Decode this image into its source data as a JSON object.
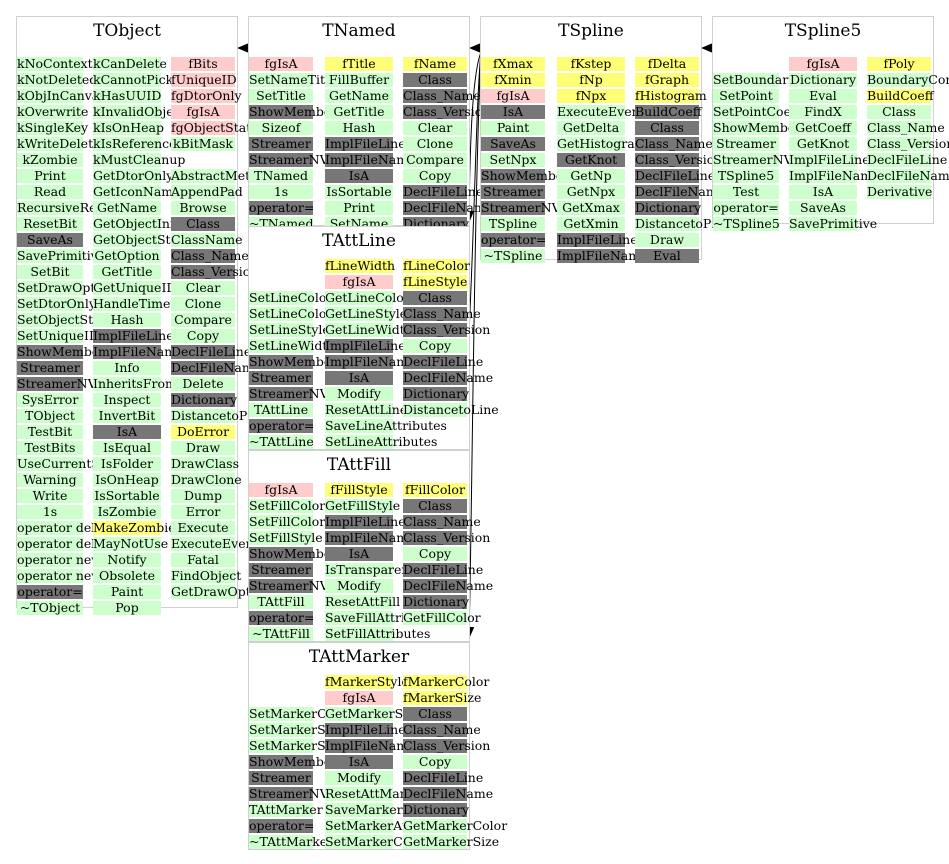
{
  "colors": {
    "public_method": "#ccffcc",
    "protected_method": "#777777",
    "data_member": "#ffff77",
    "static_member": "#ffcccc",
    "edge": "#000000",
    "box_border": "#d0d0d0"
  },
  "classes": {
    "TObject": {
      "title": "TObject",
      "col0": [
        [
          "kNoContextMenu",
          "g"
        ],
        [
          "kNotDeleted",
          "g"
        ],
        [
          "kObjInCanvas",
          "g"
        ],
        [
          "kOverwrite",
          "g"
        ],
        [
          "kSingleKey",
          "g"
        ],
        [
          "kWriteDelete",
          "g"
        ],
        [
          "kZombie",
          "g"
        ],
        [
          "Print",
          "g"
        ],
        [
          "Read",
          "g"
        ],
        [
          "RecursiveRemove",
          "g"
        ],
        [
          "ResetBit",
          "g"
        ],
        [
          "SaveAs",
          "d"
        ],
        [
          "SavePrimitive",
          "g"
        ],
        [
          "SetBit",
          "g"
        ],
        [
          "SetDrawOption",
          "g"
        ],
        [
          "SetDtorOnly",
          "g"
        ],
        [
          "SetObjectStat",
          "g"
        ],
        [
          "SetUniqueID",
          "g"
        ],
        [
          "ShowMembers",
          "d"
        ],
        [
          "Streamer",
          "d"
        ],
        [
          "StreamerNVirtual",
          "d"
        ],
        [
          "SysError",
          "g"
        ],
        [
          "TObject",
          "g"
        ],
        [
          "TestBit",
          "g"
        ],
        [
          "TestBits",
          "g"
        ],
        [
          "UseCurrentStyle",
          "g"
        ],
        [
          "Warning",
          "g"
        ],
        [
          "Write",
          "g"
        ],
        [
          "1s",
          "g"
        ],
        [
          "operator delete",
          "g"
        ],
        [
          "operator delete[]",
          "g"
        ],
        [
          "operator new",
          "g"
        ],
        [
          "operator new[]",
          "g"
        ],
        [
          "operator=",
          "d"
        ],
        [
          "~TObject",
          "g"
        ]
      ],
      "col1": [
        [
          "kCanDelete",
          "g"
        ],
        [
          "kCannotPick",
          "g"
        ],
        [
          "kHasUUID",
          "g"
        ],
        [
          "kInvalidObject",
          "g"
        ],
        [
          "kIsOnHeap",
          "g"
        ],
        [
          "kIsReferenced",
          "g"
        ],
        [
          "kMustCleanup",
          "g"
        ],
        [
          "GetDtorOnly",
          "g"
        ],
        [
          "GetIconName",
          "g"
        ],
        [
          "GetName",
          "g"
        ],
        [
          "GetObjectInfo",
          "g"
        ],
        [
          "GetObjectStat",
          "g"
        ],
        [
          "GetOption",
          "g"
        ],
        [
          "GetTitle",
          "g"
        ],
        [
          "GetUniqueID",
          "g"
        ],
        [
          "HandleTimer",
          "g"
        ],
        [
          "Hash",
          "g"
        ],
        [
          "ImplFileLine",
          "d"
        ],
        [
          "ImplFileName",
          "d"
        ],
        [
          "Info",
          "g"
        ],
        [
          "InheritsFrom",
          "g"
        ],
        [
          "Inspect",
          "g"
        ],
        [
          "InvertBit",
          "g"
        ],
        [
          "IsA",
          "d"
        ],
        [
          "IsEqual",
          "g"
        ],
        [
          "IsFolder",
          "g"
        ],
        [
          "IsOnHeap",
          "g"
        ],
        [
          "IsSortable",
          "g"
        ],
        [
          "IsZombie",
          "g"
        ],
        [
          "MakeZombie",
          "y"
        ],
        [
          "MayNotUse",
          "g"
        ],
        [
          "Notify",
          "g"
        ],
        [
          "Obsolete",
          "g"
        ],
        [
          "Paint",
          "g"
        ],
        [
          "Pop",
          "g"
        ]
      ],
      "col2": [
        [
          "fBits",
          "p"
        ],
        [
          "fUniqueID",
          "p"
        ],
        [
          "fgDtorOnly",
          "p"
        ],
        [
          "fgIsA",
          "p"
        ],
        [
          "fgObjectStat",
          "p"
        ],
        [
          "kBitMask",
          "g"
        ],
        [
          "",
          "w"
        ],
        [
          "AbstractMethod",
          "g"
        ],
        [
          "AppendPad",
          "g"
        ],
        [
          "Browse",
          "g"
        ],
        [
          "Class",
          "d"
        ],
        [
          "ClassName",
          "g"
        ],
        [
          "Class_Name",
          "d"
        ],
        [
          "Class_Version",
          "d"
        ],
        [
          "Clear",
          "g"
        ],
        [
          "Clone",
          "g"
        ],
        [
          "Compare",
          "g"
        ],
        [
          "Copy",
          "g"
        ],
        [
          "DeclFileLine",
          "d"
        ],
        [
          "DeclFileName",
          "d"
        ],
        [
          "Delete",
          "g"
        ],
        [
          "Dictionary",
          "d"
        ],
        [
          "DistancetoPrimitive",
          "g"
        ],
        [
          "DoError",
          "y"
        ],
        [
          "Draw",
          "g"
        ],
        [
          "DrawClass",
          "g"
        ],
        [
          "DrawClone",
          "g"
        ],
        [
          "Dump",
          "g"
        ],
        [
          "Error",
          "g"
        ],
        [
          "Execute",
          "g"
        ],
        [
          "ExecuteEvent",
          "g"
        ],
        [
          "Fatal",
          "g"
        ],
        [
          "FindObject",
          "g"
        ],
        [
          "GetDrawOption",
          "g"
        ]
      ]
    },
    "TNamed": {
      "title": "TNamed",
      "col0": [
        [
          "fgIsA",
          "p"
        ],
        [
          "SetNameTitle",
          "g"
        ],
        [
          "SetTitle",
          "g"
        ],
        [
          "ShowMembers",
          "d"
        ],
        [
          "Sizeof",
          "g"
        ],
        [
          "Streamer",
          "d"
        ],
        [
          "StreamerNVirtual",
          "d"
        ],
        [
          "TNamed",
          "g"
        ],
        [
          "1s",
          "g"
        ],
        [
          "operator=",
          "d"
        ],
        [
          "~TNamed",
          "g"
        ]
      ],
      "col1": [
        [
          "fTitle",
          "y"
        ],
        [
          "FillBuffer",
          "g"
        ],
        [
          "GetName",
          "g"
        ],
        [
          "GetTitle",
          "g"
        ],
        [
          "Hash",
          "g"
        ],
        [
          "ImplFileLine",
          "d"
        ],
        [
          "ImplFileName",
          "d"
        ],
        [
          "IsA",
          "d"
        ],
        [
          "IsSortable",
          "g"
        ],
        [
          "Print",
          "g"
        ],
        [
          "SetName",
          "g"
        ]
      ],
      "col2": [
        [
          "fName",
          "y"
        ],
        [
          "Class",
          "d"
        ],
        [
          "Class_Name",
          "d"
        ],
        [
          "Class_Version",
          "d"
        ],
        [
          "Clear",
          "g"
        ],
        [
          "Clone",
          "g"
        ],
        [
          "Compare",
          "g"
        ],
        [
          "Copy",
          "g"
        ],
        [
          "DeclFileLine",
          "d"
        ],
        [
          "DeclFileName",
          "d"
        ],
        [
          "Dictionary",
          "d"
        ]
      ]
    },
    "TSpline": {
      "title": "TSpline",
      "col0": [
        [
          "fXmax",
          "y"
        ],
        [
          "fXmin",
          "y"
        ],
        [
          "fgIsA",
          "p"
        ],
        [
          "IsA",
          "d"
        ],
        [
          "Paint",
          "g"
        ],
        [
          "SaveAs",
          "d"
        ],
        [
          "SetNpx",
          "g"
        ],
        [
          "ShowMembers",
          "d"
        ],
        [
          "Streamer",
          "d"
        ],
        [
          "StreamerNVirtual",
          "d"
        ],
        [
          "TSpline",
          "g"
        ],
        [
          "operator=",
          "d"
        ],
        [
          "~TSpline",
          "g"
        ]
      ],
      "col1": [
        [
          "fKstep",
          "y"
        ],
        [
          "fNp",
          "y"
        ],
        [
          "fNpx",
          "y"
        ],
        [
          "ExecuteEvent",
          "g"
        ],
        [
          "GetDelta",
          "g"
        ],
        [
          "GetHistogram",
          "g"
        ],
        [
          "GetKnot",
          "d"
        ],
        [
          "GetNp",
          "g"
        ],
        [
          "GetNpx",
          "g"
        ],
        [
          "GetXmax",
          "g"
        ],
        [
          "GetXmin",
          "g"
        ],
        [
          "ImplFileLine",
          "d"
        ],
        [
          "ImplFileName",
          "d"
        ]
      ],
      "col2": [
        [
          "fDelta",
          "y"
        ],
        [
          "fGraph",
          "y"
        ],
        [
          "fHistogram",
          "y"
        ],
        [
          "BuildCoeff",
          "d"
        ],
        [
          "Class",
          "d"
        ],
        [
          "Class_Name",
          "d"
        ],
        [
          "Class_Version",
          "d"
        ],
        [
          "DeclFileLine",
          "d"
        ],
        [
          "DeclFileName",
          "d"
        ],
        [
          "Dictionary",
          "d"
        ],
        [
          "DistancetoPrimitive",
          "g"
        ],
        [
          "Draw",
          "g"
        ],
        [
          "Eval",
          "d"
        ]
      ]
    },
    "TSpline5": {
      "title": "TSpline5",
      "col0": [
        [
          "",
          "w"
        ],
        [
          "SetBoundaries",
          "g"
        ],
        [
          "SetPoint",
          "g"
        ],
        [
          "SetPointCoeff",
          "g"
        ],
        [
          "ShowMembers",
          "g"
        ],
        [
          "Streamer",
          "g"
        ],
        [
          "StreamerNVirtual",
          "g"
        ],
        [
          "TSpline5",
          "g"
        ],
        [
          "Test",
          "g"
        ],
        [
          "operator=",
          "g"
        ],
        [
          "~TSpline5",
          "g"
        ]
      ],
      "col1": [
        [
          "fgIsA",
          "p"
        ],
        [
          "Dictionary",
          "g"
        ],
        [
          "Eval",
          "g"
        ],
        [
          "FindX",
          "g"
        ],
        [
          "GetCoeff",
          "g"
        ],
        [
          "GetKnot",
          "g"
        ],
        [
          "ImplFileLine",
          "g"
        ],
        [
          "ImplFileName",
          "g"
        ],
        [
          "IsA",
          "g"
        ],
        [
          "SaveAs",
          "g"
        ],
        [
          "SavePrimitive",
          "g"
        ]
      ],
      "col2": [
        [
          "fPoly",
          "y"
        ],
        [
          "BoundaryConditions",
          "g"
        ],
        [
          "BuildCoeff",
          "y"
        ],
        [
          "Class",
          "g"
        ],
        [
          "Class_Name",
          "g"
        ],
        [
          "Class_Version",
          "g"
        ],
        [
          "DeclFileLine",
          "g"
        ],
        [
          "DeclFileName",
          "g"
        ],
        [
          "Derivative",
          "g"
        ]
      ]
    },
    "TAttLine": {
      "title": "TAttLine",
      "col0": [
        [
          "",
          "w"
        ],
        [
          "",
          "w"
        ],
        [
          "SetLineColor",
          "g"
        ],
        [
          "SetLineColorAlpha",
          "g"
        ],
        [
          "SetLineStyle",
          "g"
        ],
        [
          "SetLineWidth",
          "g"
        ],
        [
          "ShowMembers",
          "d"
        ],
        [
          "Streamer",
          "d"
        ],
        [
          "StreamerNVirtual",
          "d"
        ],
        [
          "TAttLine",
          "g"
        ],
        [
          "operator=",
          "d"
        ],
        [
          "~TAttLine",
          "g"
        ]
      ],
      "col1": [
        [
          "fLineWidth",
          "y"
        ],
        [
          "fgIsA",
          "p"
        ],
        [
          "GetLineColor",
          "g"
        ],
        [
          "GetLineStyle",
          "g"
        ],
        [
          "GetLineWidth",
          "g"
        ],
        [
          "ImplFileLine",
          "d"
        ],
        [
          "ImplFileName",
          "d"
        ],
        [
          "IsA",
          "d"
        ],
        [
          "Modify",
          "g"
        ],
        [
          "ResetAttLine",
          "g"
        ],
        [
          "SaveLineAttributes",
          "g"
        ],
        [
          "SetLineAttributes",
          "g"
        ]
      ],
      "col2": [
        [
          "fLineColor",
          "y"
        ],
        [
          "fLineStyle",
          "y"
        ],
        [
          "Class",
          "d"
        ],
        [
          "Class_Name",
          "d"
        ],
        [
          "Class_Version",
          "d"
        ],
        [
          "Copy",
          "g"
        ],
        [
          "DeclFileLine",
          "d"
        ],
        [
          "DeclFileName",
          "d"
        ],
        [
          "Dictionary",
          "d"
        ],
        [
          "DistancetoLine",
          "g"
        ]
      ]
    },
    "TAttFill": {
      "title": "TAttFill",
      "col0": [
        [
          "fgIsA",
          "p"
        ],
        [
          "SetFillColor",
          "g"
        ],
        [
          "SetFillColorAlpha",
          "g"
        ],
        [
          "SetFillStyle",
          "g"
        ],
        [
          "ShowMembers",
          "d"
        ],
        [
          "Streamer",
          "d"
        ],
        [
          "StreamerNVirtual",
          "d"
        ],
        [
          "TAttFill",
          "g"
        ],
        [
          "operator=",
          "d"
        ],
        [
          "~TAttFill",
          "g"
        ]
      ],
      "col1": [
        [
          "fFillStyle",
          "y"
        ],
        [
          "GetFillStyle",
          "g"
        ],
        [
          "ImplFileLine",
          "d"
        ],
        [
          "ImplFileName",
          "d"
        ],
        [
          "IsA",
          "d"
        ],
        [
          "IsTransparent",
          "g"
        ],
        [
          "Modify",
          "g"
        ],
        [
          "ResetAttFill",
          "g"
        ],
        [
          "SaveFillAttributes",
          "g"
        ],
        [
          "SetFillAttributes",
          "g"
        ]
      ],
      "col2": [
        [
          "fFillColor",
          "y"
        ],
        [
          "Class",
          "d"
        ],
        [
          "Class_Name",
          "d"
        ],
        [
          "Class_Version",
          "d"
        ],
        [
          "Copy",
          "g"
        ],
        [
          "DeclFileLine",
          "d"
        ],
        [
          "DeclFileName",
          "d"
        ],
        [
          "Dictionary",
          "d"
        ],
        [
          "GetFillColor",
          "g"
        ]
      ]
    },
    "TAttMarker": {
      "title": "TAttMarker",
      "col0": [
        [
          "",
          "w"
        ],
        [
          "",
          "w"
        ],
        [
          "SetMarkerColorAlpha",
          "g"
        ],
        [
          "SetMarkerSize",
          "g"
        ],
        [
          "SetMarkerStyle",
          "g"
        ],
        [
          "ShowMembers",
          "d"
        ],
        [
          "Streamer",
          "d"
        ],
        [
          "StreamerNVirtual",
          "d"
        ],
        [
          "TAttMarker",
          "g"
        ],
        [
          "operator=",
          "d"
        ],
        [
          "~TAttMarker",
          "g"
        ]
      ],
      "col1": [
        [
          "fMarkerStyle",
          "y"
        ],
        [
          "fgIsA",
          "p"
        ],
        [
          "GetMarkerStyle",
          "g"
        ],
        [
          "ImplFileLine",
          "d"
        ],
        [
          "ImplFileName",
          "d"
        ],
        [
          "IsA",
          "d"
        ],
        [
          "Modify",
          "g"
        ],
        [
          "ResetAttMarker",
          "g"
        ],
        [
          "SaveMarkerAttributes",
          "g"
        ],
        [
          "SetMarkerAttributes",
          "g"
        ],
        [
          "SetMarkerColor",
          "g"
        ]
      ],
      "col2": [
        [
          "fMarkerColor",
          "y"
        ],
        [
          "fMarkerSize",
          "y"
        ],
        [
          "Class",
          "d"
        ],
        [
          "Class_Name",
          "d"
        ],
        [
          "Class_Version",
          "d"
        ],
        [
          "Copy",
          "g"
        ],
        [
          "DeclFileLine",
          "d"
        ],
        [
          "DeclFileName",
          "d"
        ],
        [
          "Dictionary",
          "d"
        ],
        [
          "GetMarkerColor",
          "g"
        ],
        [
          "GetMarkerSize",
          "g"
        ]
      ]
    }
  }
}
